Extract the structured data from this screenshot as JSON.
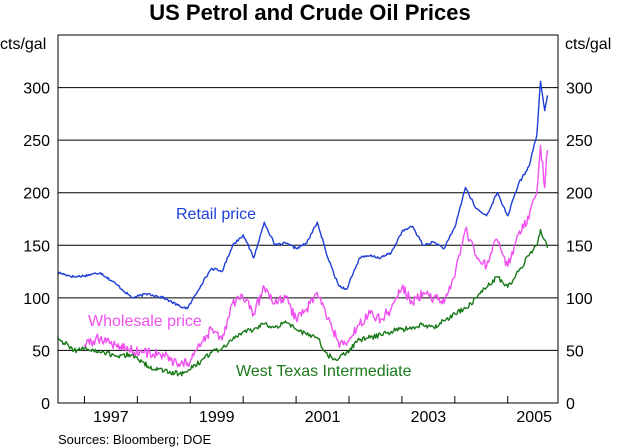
{
  "chart_data": {
    "type": "line",
    "title": "US Petrol and Crude Oil Prices",
    "ylabel_left": "cts/gal",
    "ylabel_right": "cts/gal",
    "source": "Sources: Bloomberg; DOE",
    "ylim": [
      0,
      350
    ],
    "yticks": [
      0,
      50,
      100,
      150,
      200,
      250,
      300
    ],
    "xlim": [
      1996.5,
      2005.95
    ],
    "xtick_labels": [
      "1997",
      "1999",
      "2001",
      "2003",
      "2005"
    ],
    "year_boundaries": [
      1997,
      1998,
      1999,
      2000,
      2001,
      2002,
      2003,
      2004,
      2005
    ],
    "grid": true,
    "series": [
      {
        "name": "Retail price",
        "color": "#1f3fd6",
        "x": [
          1996.5,
          1996.8,
          1997.0,
          1997.3,
          1997.6,
          1997.9,
          1998.2,
          1998.5,
          1998.8,
          1998.95,
          1999.2,
          1999.4,
          1999.6,
          1999.8,
          2000.0,
          2000.2,
          2000.4,
          2000.6,
          2000.8,
          2001.0,
          2001.2,
          2001.4,
          2001.6,
          2001.8,
          2001.95,
          2002.2,
          2002.4,
          2002.6,
          2002.8,
          2003.0,
          2003.2,
          2003.4,
          2003.6,
          2003.8,
          2004.0,
          2004.2,
          2004.4,
          2004.6,
          2004.8,
          2005.0,
          2005.2,
          2005.4,
          2005.55,
          2005.62,
          2005.7,
          2005.75
        ],
        "values": [
          124,
          120,
          121,
          124,
          113,
          100,
          104,
          100,
          92,
          90,
          112,
          128,
          125,
          150,
          160,
          138,
          172,
          150,
          152,
          147,
          152,
          172,
          138,
          112,
          108,
          138,
          140,
          138,
          143,
          163,
          168,
          150,
          153,
          147,
          167,
          205,
          185,
          178,
          200,
          178,
          208,
          225,
          255,
          306,
          278,
          292
        ]
      },
      {
        "name": "Wholesale price",
        "color": "#f050f0",
        "x": [
          1997.0,
          1997.3,
          1997.6,
          1997.9,
          1998.2,
          1998.5,
          1998.8,
          1998.95,
          1999.2,
          1999.4,
          1999.6,
          1999.8,
          2000.0,
          2000.2,
          2000.4,
          2000.6,
          2000.8,
          2001.0,
          2001.2,
          2001.4,
          2001.6,
          2001.8,
          2001.95,
          2002.2,
          2002.4,
          2002.6,
          2002.8,
          2003.0,
          2003.2,
          2003.4,
          2003.6,
          2003.8,
          2004.0,
          2004.2,
          2004.4,
          2004.6,
          2004.8,
          2005.0,
          2005.2,
          2005.4,
          2005.55,
          2005.62,
          2005.7,
          2005.75
        ],
        "values": [
          55,
          62,
          55,
          50,
          48,
          45,
          35,
          38,
          55,
          70,
          60,
          95,
          100,
          85,
          110,
          95,
          100,
          80,
          90,
          105,
          80,
          58,
          55,
          75,
          85,
          80,
          90,
          110,
          95,
          105,
          100,
          95,
          120,
          165,
          140,
          130,
          155,
          130,
          160,
          175,
          200,
          245,
          205,
          240
        ]
      },
      {
        "name": "West Texas Intermediate",
        "color": "#1a7a1a",
        "x": [
          1996.5,
          1996.8,
          1997.0,
          1997.3,
          1997.6,
          1997.9,
          1998.2,
          1998.5,
          1998.8,
          1998.95,
          1999.2,
          1999.4,
          1999.6,
          1999.8,
          2000.0,
          2000.2,
          2000.4,
          2000.6,
          2000.8,
          2001.0,
          2001.2,
          2001.4,
          2001.6,
          2001.8,
          2001.95,
          2002.2,
          2002.4,
          2002.6,
          2002.8,
          2003.0,
          2003.2,
          2003.4,
          2003.6,
          2003.8,
          2004.0,
          2004.2,
          2004.4,
          2004.6,
          2004.8,
          2005.0,
          2005.2,
          2005.4,
          2005.55,
          2005.62,
          2005.7,
          2005.75
        ],
        "values": [
          62,
          50,
          52,
          48,
          45,
          46,
          35,
          30,
          28,
          30,
          40,
          48,
          52,
          60,
          68,
          70,
          75,
          72,
          78,
          70,
          65,
          62,
          45,
          42,
          48,
          60,
          62,
          65,
          68,
          70,
          72,
          75,
          72,
          78,
          85,
          90,
          100,
          110,
          120,
          110,
          125,
          140,
          150,
          165,
          155,
          148
        ]
      }
    ],
    "annotations": [
      {
        "text": "Retail price",
        "series": "Retail price"
      },
      {
        "text": "Wholesale price",
        "series": "Wholesale price"
      },
      {
        "text": "West Texas Intermediate",
        "series": "West Texas Intermediate"
      }
    ]
  }
}
